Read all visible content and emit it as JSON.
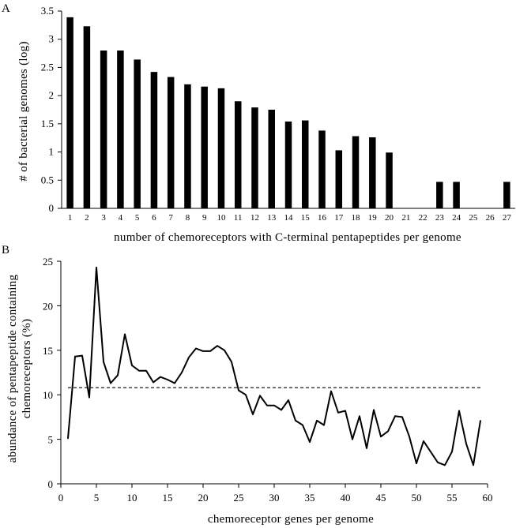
{
  "chart_data": [
    {
      "panel": "A",
      "type": "bar",
      "xlabel": "number of chemoreceptors with C-terminal pentapeptides per genome",
      "ylabel": "# of bacterial genomes (log)",
      "ylim": [
        0,
        3.5
      ],
      "yticks": [
        "0",
        "0.5",
        "1",
        "1.5",
        "2",
        "2.5",
        "3",
        "3.5"
      ],
      "categories": [
        "1",
        "2",
        "3",
        "4",
        "5",
        "6",
        "7",
        "8",
        "9",
        "10",
        "11",
        "12",
        "13",
        "14",
        "15",
        "16",
        "17",
        "18",
        "19",
        "20",
        "21",
        "22",
        "23",
        "24",
        "25",
        "26",
        "27"
      ],
      "values": [
        3.39,
        3.23,
        2.8,
        2.8,
        2.64,
        2.42,
        2.33,
        2.2,
        2.16,
        2.13,
        1.9,
        1.79,
        1.75,
        1.54,
        1.56,
        1.38,
        1.03,
        1.28,
        1.26,
        0.99,
        0,
        0,
        0.47,
        0.47,
        0,
        0,
        0.47
      ],
      "grid": false
    },
    {
      "panel": "B",
      "type": "line",
      "xlabel": "chemoreceptor genes per genome",
      "ylabel_lines": [
        "abundance of pentapeptide containing",
        "chemoreceptors (%)"
      ],
      "xlim": [
        0,
        60
      ],
      "ylim": [
        0,
        25
      ],
      "xticks": [
        "0",
        "5",
        "10",
        "15",
        "20",
        "25",
        "30",
        "35",
        "40",
        "45",
        "50",
        "55",
        "60"
      ],
      "yticks": [
        "0",
        "5",
        "10",
        "15",
        "20",
        "25"
      ],
      "x": [
        1,
        2,
        3,
        4,
        5,
        6,
        7,
        8,
        9,
        10,
        11,
        12,
        13,
        14,
        15,
        16,
        17,
        18,
        19,
        20,
        21,
        22,
        23,
        24,
        25,
        26,
        27,
        28,
        29,
        30,
        31,
        32,
        33,
        34,
        35,
        36,
        37,
        38,
        39,
        40,
        41,
        42,
        43,
        44,
        45,
        46,
        47,
        48,
        49,
        50,
        51,
        52,
        53,
        54,
        55,
        56,
        57,
        58,
        59
      ],
      "y": [
        5.1,
        14.3,
        14.4,
        9.7,
        24.3,
        13.7,
        11.3,
        12.2,
        16.8,
        13.3,
        12.7,
        12.7,
        11.4,
        12.0,
        11.7,
        11.3,
        12.5,
        14.2,
        15.2,
        14.9,
        14.9,
        15.5,
        15.0,
        13.7,
        10.5,
        10.0,
        7.8,
        9.9,
        8.8,
        8.8,
        8.3,
        9.4,
        7.1,
        6.6,
        4.7,
        7.1,
        6.6,
        10.4,
        8.0,
        8.2,
        5.0,
        7.6,
        4.0,
        8.3,
        5.3,
        5.9,
        7.6,
        7.5,
        5.3,
        2.3,
        4.8,
        3.6,
        2.4,
        2.1,
        3.6,
        8.2,
        4.5,
        2.1,
        7.1
      ],
      "reference_line": {
        "y": 10.8,
        "style": "dashed"
      },
      "grid": false
    }
  ],
  "panel_labels": [
    "A",
    "B"
  ]
}
